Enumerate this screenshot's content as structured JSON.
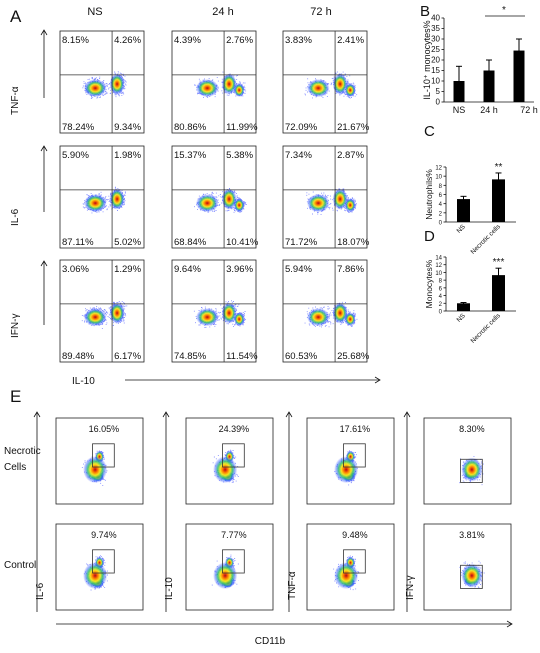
{
  "panel_a": {
    "letter": "A",
    "col_headers": [
      "NS",
      "24 h",
      "72 h"
    ],
    "row_labels": [
      "TNF-α",
      "IL-6",
      "IFN-γ"
    ],
    "xlabel": "IL-10",
    "quadrants": [
      [
        [
          "8.15%",
          "4.26%",
          "78.24%",
          "9.34%"
        ],
        [
          "4.39%",
          "2.76%",
          "80.86%",
          "11.99%"
        ],
        [
          "3.83%",
          "2.41%",
          "72.09%",
          "21.67%"
        ]
      ],
      [
        [
          "5.90%",
          "1.98%",
          "87.11%",
          "5.02%"
        ],
        [
          "15.37%",
          "5.38%",
          "68.84%",
          "10.41%"
        ],
        [
          "7.34%",
          "2.87%",
          "71.72%",
          "18.07%"
        ]
      ],
      [
        [
          "3.06%",
          "1.29%",
          "89.48%",
          "6.17%"
        ],
        [
          "9.64%",
          "3.96%",
          "74.85%",
          "11.54%"
        ],
        [
          "5.94%",
          "7.86%",
          "60.53%",
          "25.68%"
        ]
      ]
    ]
  },
  "panel_e": {
    "letter": "E",
    "row_labels": [
      "Necrotic\nCells",
      "Control"
    ],
    "gates": [
      [
        "16.05%",
        "24.39%",
        "17.61%",
        "8.30%"
      ],
      [
        "9.74%",
        "7.77%",
        "9.48%",
        "3.81%"
      ]
    ],
    "ylabels": [
      "IL-6",
      "IL-10",
      "TNF-α",
      "IFN-γ"
    ],
    "xlabel": "CD11b"
  },
  "chart_data": [
    {
      "id": "B",
      "letter": "B",
      "type": "bar",
      "categories": [
        "NS",
        "24 h",
        "72 h"
      ],
      "values": [
        10,
        15,
        24.5
      ],
      "errors": [
        7,
        5,
        5.5
      ],
      "ylabel": "IL-10⁺ monocytes%",
      "ylim": [
        0,
        40
      ],
      "yticks": [
        0,
        5,
        10,
        15,
        20,
        25,
        30,
        35,
        40
      ],
      "significance": "*",
      "sig_span": [
        1,
        2
      ]
    },
    {
      "id": "C",
      "letter": "C",
      "type": "bar",
      "categories": [
        "NS",
        "Necrotic cells"
      ],
      "values": [
        5,
        9.3
      ],
      "errors": [
        0.6,
        1.4
      ],
      "ylabel": "Neutrophils%",
      "ylim": [
        0,
        12
      ],
      "yticks": [
        0,
        2,
        4,
        6,
        8,
        10,
        12
      ],
      "significance": "**",
      "sig_span": [
        1,
        1
      ]
    },
    {
      "id": "D",
      "letter": "D",
      "type": "bar",
      "categories": [
        "NS",
        "Necrotic cells"
      ],
      "values": [
        2,
        9.3
      ],
      "errors": [
        0.2,
        1.8
      ],
      "ylabel": "Monocytes%",
      "ylim": [
        0,
        14
      ],
      "yticks": [
        0,
        2,
        4,
        6,
        8,
        10,
        12,
        14
      ],
      "significance": "***",
      "sig_span": [
        1,
        1
      ]
    }
  ]
}
